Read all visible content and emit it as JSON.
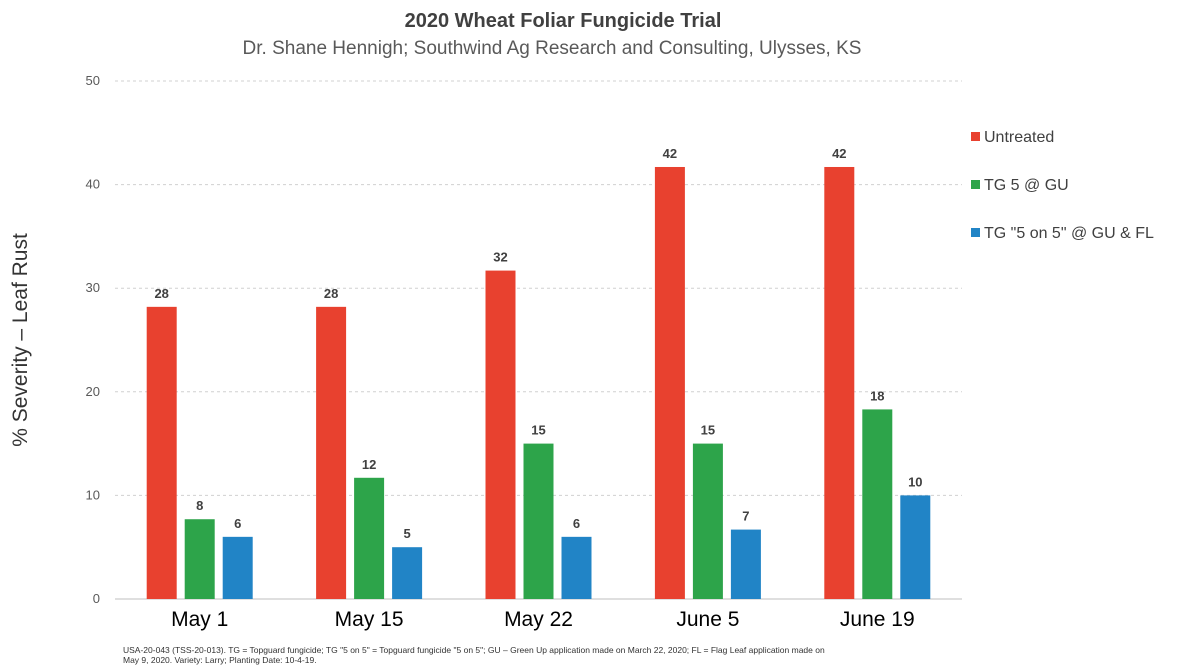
{
  "chart_data": {
    "type": "bar",
    "title": "2020 Wheat Foliar Fungicide Trial",
    "subtitle": "Dr. Shane Hennigh; Southwind Ag Research and Consulting, Ulysses, KS",
    "xlabel": "",
    "ylabel": "% Severity – Leaf Rust",
    "ylim": [
      0,
      50
    ],
    "yticks": [
      "0",
      "10",
      "20",
      "30",
      "40",
      "50"
    ],
    "grid": true,
    "legend_position": "right",
    "categories": [
      "May 1",
      "May 15",
      "May 22",
      "June 5",
      "June 19"
    ],
    "series": [
      {
        "name": "Untreated",
        "color": "#e8412f",
        "values": [
          28.2,
          28.2,
          31.7,
          41.7,
          41.7
        ],
        "labels": [
          "28",
          "28",
          "32",
          "42",
          "42"
        ]
      },
      {
        "name": "TG 5 @ GU",
        "color": "#2da44a",
        "values": [
          7.7,
          11.7,
          15,
          15,
          18.3
        ],
        "labels": [
          "8",
          "12",
          "15",
          "15",
          "18"
        ]
      },
      {
        "name": "TG \"5 on 5\" @ GU & FL",
        "color": "#2184c6",
        "values": [
          6,
          5,
          6,
          6.7,
          10
        ],
        "labels": [
          "6",
          "5",
          "6",
          "7",
          "10"
        ]
      }
    ]
  },
  "footnote": {
    "line1": "USA-20-043  (TSS-20-013).   TG = Topguard  fungicide;  TG \"5 on 5\" = Topguard  fungicide  \"5 on 5\";  GU – Green Up application made on March 22, 2020;  FL = Flag Leaf application made on",
    "line2": "May 9, 2020.   Variety: Larry;  Planting Date: 10-4-19."
  }
}
